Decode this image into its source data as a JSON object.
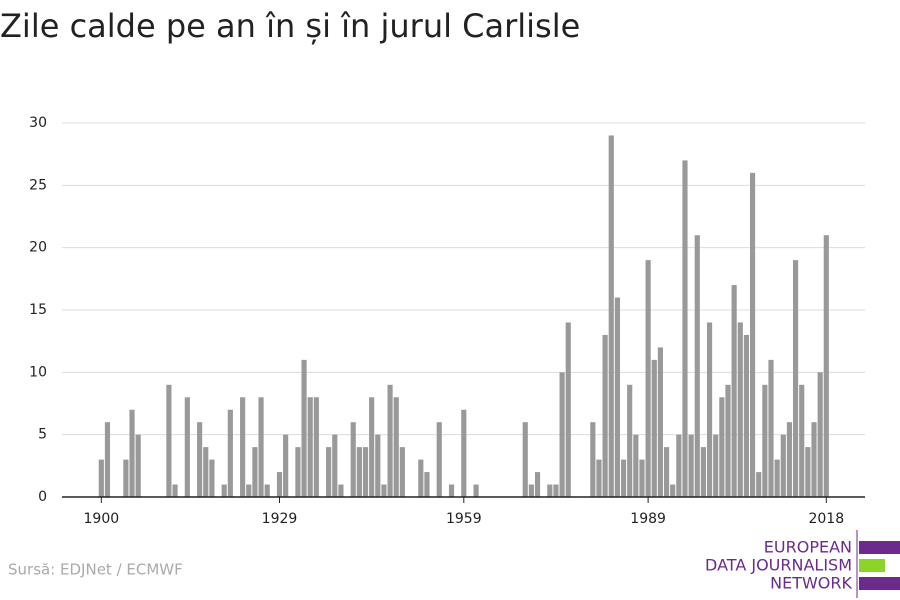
{
  "chart_data": {
    "type": "bar",
    "title": "Zile calde pe an în și în jurul Carlisle",
    "source": "Sursă: EDJNet / ECMWF",
    "logo": [
      "EUROPEAN",
      "DATA JOURNALISM",
      "NETWORK"
    ],
    "color": "#999999",
    "x": [
      1900,
      1901,
      1902,
      1903,
      1904,
      1905,
      1906,
      1907,
      1908,
      1909,
      1910,
      1911,
      1912,
      1913,
      1914,
      1915,
      1916,
      1917,
      1918,
      1919,
      1920,
      1921,
      1922,
      1923,
      1924,
      1925,
      1926,
      1927,
      1928,
      1929,
      1930,
      1931,
      1932,
      1933,
      1934,
      1935,
      1936,
      1937,
      1938,
      1939,
      1940,
      1941,
      1942,
      1943,
      1944,
      1945,
      1946,
      1947,
      1948,
      1949,
      1950,
      1951,
      1952,
      1953,
      1954,
      1955,
      1956,
      1957,
      1958,
      1959,
      1960,
      1961,
      1962,
      1963,
      1964,
      1965,
      1966,
      1967,
      1968,
      1969,
      1970,
      1971,
      1972,
      1973,
      1974,
      1975,
      1976,
      1977,
      1978,
      1979,
      1980,
      1981,
      1982,
      1983,
      1984,
      1985,
      1986,
      1987,
      1988,
      1989,
      1990,
      1991,
      1992,
      1993,
      1994,
      1995,
      1996,
      1997,
      1998,
      1999,
      2000,
      2001,
      2002,
      2003,
      2004,
      2005,
      2006,
      2007,
      2008,
      2009,
      2010,
      2011,
      2012,
      2013,
      2014,
      2015,
      2016,
      2017,
      2018
    ],
    "values": [
      3,
      6,
      0,
      0,
      3,
      7,
      5,
      0,
      0,
      0,
      0,
      9,
      1,
      0,
      8,
      0,
      6,
      4,
      3,
      0,
      1,
      7,
      0,
      8,
      1,
      4,
      8,
      1,
      0,
      2,
      5,
      0,
      4,
      11,
      8,
      8,
      0,
      4,
      5,
      1,
      0,
      6,
      4,
      4,
      8,
      5,
      1,
      9,
      8,
      4,
      0,
      0,
      3,
      2,
      0,
      6,
      0,
      1,
      0,
      7,
      0,
      1,
      0,
      0,
      0,
      0,
      0,
      0,
      0,
      6,
      1,
      2,
      0,
      1,
      1,
      10,
      14,
      0,
      0,
      0,
      6,
      3,
      13,
      29,
      16,
      3,
      9,
      5,
      3,
      19,
      11,
      12,
      4,
      1,
      5,
      27,
      5,
      21,
      4,
      14,
      5,
      8,
      9,
      17,
      14,
      13,
      26,
      2,
      9,
      11,
      3,
      5,
      6,
      19,
      9,
      4,
      6,
      10,
      21
    ],
    "xlim": [
      1893.6,
      2024.3
    ],
    "xticks": [
      1900,
      1929,
      1959,
      1989,
      2018
    ],
    "ylim": [
      0,
      30
    ],
    "yticks": [
      0,
      5,
      10,
      15,
      20,
      25,
      30
    ],
    "grid": true
  }
}
